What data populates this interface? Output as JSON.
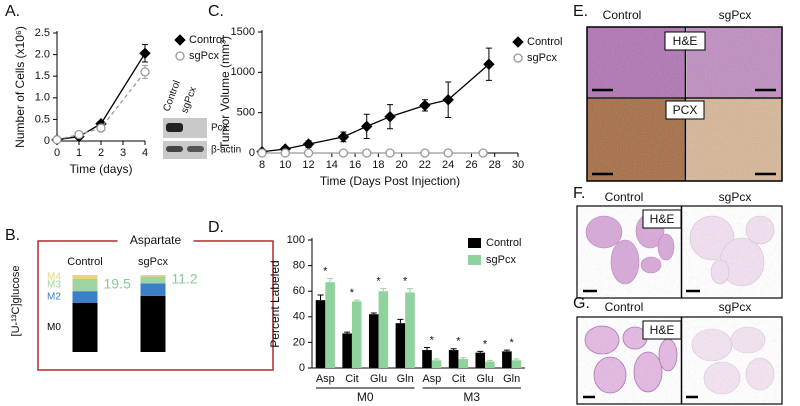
{
  "chart_data": [
    {
      "type": "line",
      "label": "A.",
      "x_label": "Time (days)",
      "y_label": "Number of Cells (x10⁶)",
      "xlim": [
        0,
        4
      ],
      "xticks": [
        0,
        1,
        2,
        3,
        4
      ],
      "ylim": [
        0,
        2.5
      ],
      "yticks": [
        0,
        0.5,
        {
          "value": 1,
          "label": "1.0"
        },
        1.5,
        {
          "value": 2,
          "label": "2.0"
        },
        2.5
      ],
      "series": [
        {
          "name": "Control",
          "color": "#000000",
          "marker": "diamond",
          "filled": true,
          "dash": false,
          "x": [
            0,
            1,
            2,
            4
          ],
          "values": [
            0.03,
            0.1,
            0.4,
            2.03
          ],
          "errors": [
            0.01,
            0.03,
            0.04,
            0.2
          ]
        },
        {
          "name": "sgPcx",
          "color": "#999999",
          "marker": "circle",
          "filled": false,
          "dash": true,
          "x": [
            0,
            1,
            2,
            4
          ],
          "values": [
            0.03,
            0.15,
            0.3,
            1.6
          ],
          "errors": [
            0.01,
            0.03,
            0.05,
            0.15
          ]
        }
      ]
    },
    {
      "type": "stacked-bar",
      "label": "B.",
      "title": "Aspartate",
      "y_label": "[U-¹³C]glucose",
      "categories": [
        "Control",
        "sgPcx"
      ],
      "ylim": [
        0,
        100
      ],
      "series": [
        {
          "name": "M0",
          "color": "#000000",
          "values": [
            64,
            73
          ]
        },
        {
          "name": "M2",
          "color": "#3a80c8",
          "values": [
            15,
            16
          ]
        },
        {
          "name": "M3",
          "color": "#9fd4a2",
          "values": [
            16,
            9
          ]
        },
        {
          "name": "M4",
          "color": "#ecd27a",
          "values": [
            5,
            2
          ]
        }
      ],
      "annotations": [
        "19.5",
        "11.2"
      ],
      "annotation_color": "#86c99a",
      "frame_color": "#b22a2a"
    },
    {
      "type": "line",
      "label": "C.",
      "x_label": "Time (Days Post Injection)",
      "y_label": "Tumor Volume (mm³)",
      "xlim": [
        8,
        30
      ],
      "xticks": [
        8,
        10,
        12,
        14,
        16,
        18,
        20,
        22,
        24,
        26,
        28,
        30
      ],
      "ylim": [
        0,
        1500
      ],
      "yticks": [
        0,
        500,
        1000,
        1500
      ],
      "series": [
        {
          "name": "Control",
          "color": "#000000",
          "marker": "diamond",
          "filled": true,
          "dash": false,
          "x": [
            8,
            10,
            12,
            15,
            17,
            19,
            22,
            24,
            27.5
          ],
          "values": [
            15,
            50,
            110,
            200,
            330,
            450,
            590,
            660,
            1100
          ],
          "errors": [
            10,
            20,
            40,
            60,
            150,
            150,
            70,
            220,
            200
          ]
        },
        {
          "name": "sgPcx",
          "color": "#999999",
          "marker": "circle",
          "filled": false,
          "dash": false,
          "x": [
            8,
            10,
            12,
            15,
            17,
            19,
            22,
            24,
            27
          ],
          "values": [
            0,
            0,
            0,
            0,
            0,
            0,
            0,
            0,
            0
          ]
        }
      ]
    },
    {
      "type": "grouped-bar",
      "label": "D.",
      "y_label": "Percent Labeled",
      "categories": [
        "Asp",
        "Cit",
        "Glu",
        "Gln",
        "Asp",
        "Cit",
        "Glu",
        "Gln"
      ],
      "groups": [
        "M0",
        "M3"
      ],
      "ylim": [
        0,
        100
      ],
      "yticks": [
        0,
        20,
        40,
        60,
        80,
        100
      ],
      "series": [
        {
          "name": "Control",
          "color": "#000000",
          "values": [
            53,
            27,
            42,
            35,
            14,
            14,
            12,
            13
          ],
          "errors": [
            4,
            1,
            1,
            3,
            2,
            1,
            1,
            1
          ]
        },
        {
          "name": "sgPcx",
          "color": "#8fd29e",
          "values": [
            67,
            52,
            60,
            59,
            6,
            7,
            5,
            6
          ],
          "errors": [
            3,
            1,
            2,
            3,
            1,
            1,
            1,
            1
          ]
        }
      ],
      "significance": [
        "*",
        "*",
        "*",
        "*",
        "*",
        "*",
        "*",
        "*"
      ]
    }
  ],
  "blot": {
    "lanes": [
      "Control",
      "sgPcx"
    ],
    "bands": [
      "Pcx",
      "β-actin"
    ]
  },
  "histology": [
    {
      "label": "E.",
      "columns": [
        "Control",
        "sgPcx"
      ],
      "stains": [
        "H&E",
        "PCX"
      ]
    },
    {
      "label": "F.",
      "columns": [
        "Control",
        "sgPcx"
      ],
      "stains": [
        "H&E"
      ]
    },
    {
      "label": "G.",
      "columns": [
        "Control",
        "sgPcx"
      ],
      "stains": [
        "H&E"
      ]
    }
  ]
}
